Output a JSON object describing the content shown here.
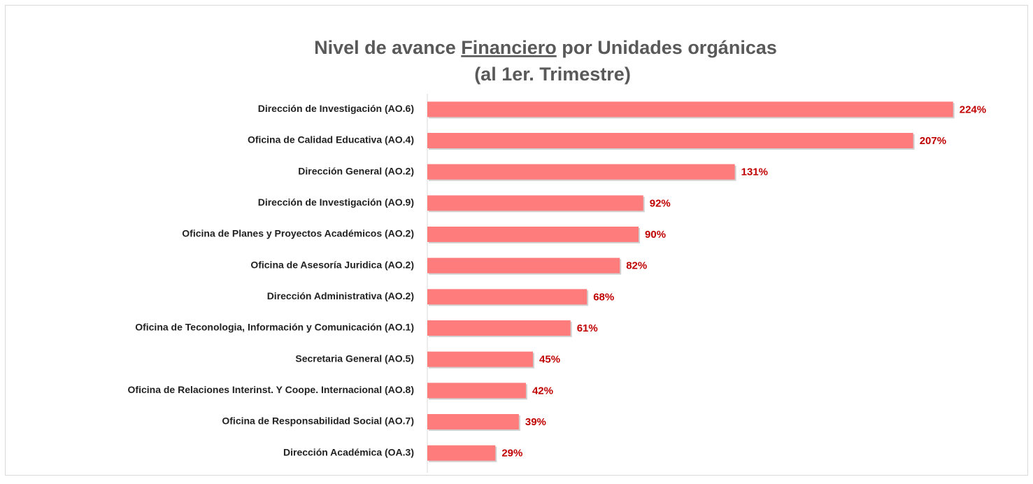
{
  "chart_data": {
    "type": "bar",
    "orientation": "horizontal",
    "title": [
      "Nivel de avance",
      "Financiero",
      "por Unidades orgánicas"
    ],
    "subtitle": "(al 1er. Trimestre)",
    "categories": [
      "Dirección de Investigación (AO.6)",
      "Oficina de Calidad Educativa (AO.4)",
      "Dirección General (AO.2)",
      "Dirección de Investigación (AO.9)",
      "Oficina de Planes y Proyectos Académicos (AO.2)",
      "Oficina de Asesoría Juridica (AO.2)",
      "Dirección Administrativa (AO.2)",
      "Oficina de Teconologia, Información y Comunicación (AO.1)",
      "Secretaria General (AO.5)",
      "Oficina de Relaciones Interinst. Y Coope. Internacional (AO.8)",
      "Oficina de Responsabilidad Social (AO.7)",
      "Dirección Académica (OA.3)"
    ],
    "values": [
      224,
      207,
      131,
      92,
      90,
      82,
      68,
      61,
      45,
      42,
      39,
      29
    ],
    "value_labels": [
      "224%",
      "207%",
      "131%",
      "92%",
      "90%",
      "82%",
      "68%",
      "61%",
      "45%",
      "42%",
      "39%",
      "29%"
    ],
    "color": "#ff7c7c",
    "label_color": "#c00000",
    "xlim": [
      0,
      250
    ]
  }
}
